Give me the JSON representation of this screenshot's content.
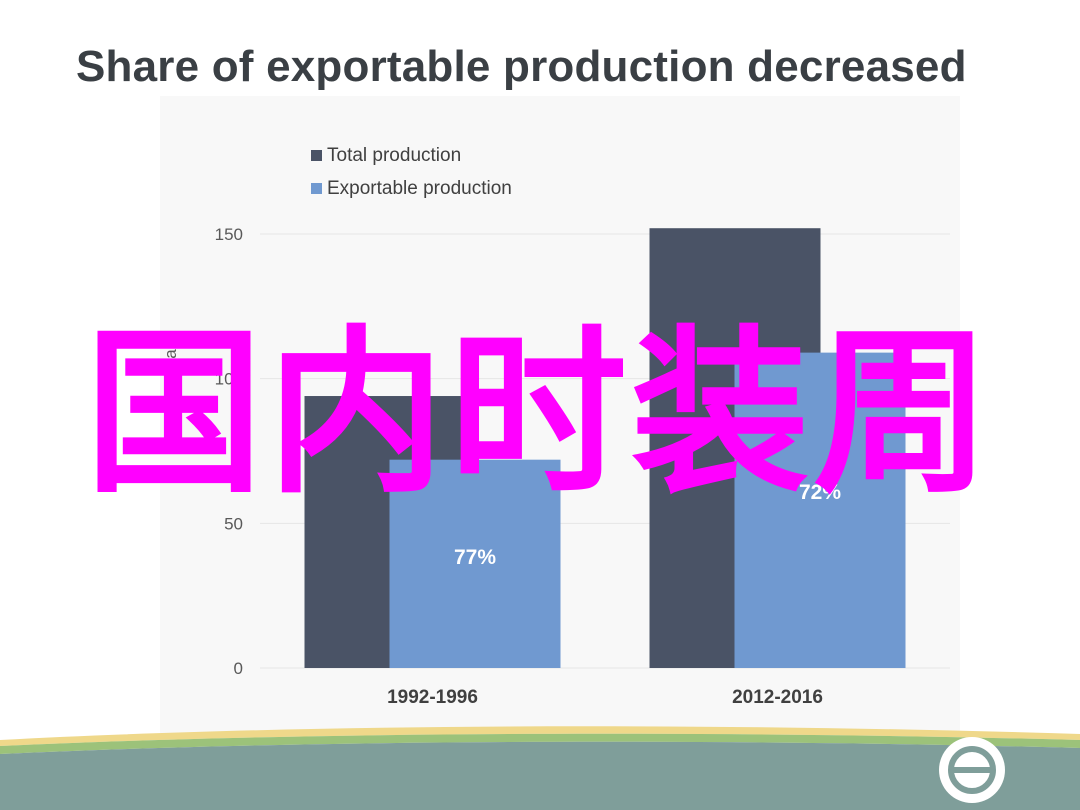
{
  "slide": {
    "title": "Share of exportable production decreased",
    "watermark": "国内时装周"
  },
  "colors": {
    "total": "#4a5366",
    "exportable": "#7099d0",
    "grid": "#e6e6e6",
    "footer_band": "#7f9e9a",
    "footer_stripe_yellow": "#efd88a",
    "footer_stripe_green": "#9cc27a"
  },
  "chart_data": {
    "type": "bar",
    "title": "",
    "xlabel": "",
    "ylabel": "kbags",
    "categories": [
      "1992-1996",
      "2012-2016"
    ],
    "series": [
      {
        "name": "Total production",
        "values": [
          94,
          152
        ],
        "color": "#4a5366"
      },
      {
        "name": "Exportable production",
        "values": [
          72,
          109
        ],
        "color": "#7099d0",
        "data_labels": [
          "77%",
          "72%"
        ]
      }
    ],
    "ylim": [
      0,
      150
    ],
    "yticks": [
      0,
      50,
      100,
      150
    ],
    "ytick_labels": [
      "0",
      "50",
      "100",
      "150"
    ],
    "grid": true,
    "legend_position": "top-left"
  },
  "footer": {
    "logo_icon": "circle-logo-icon"
  }
}
